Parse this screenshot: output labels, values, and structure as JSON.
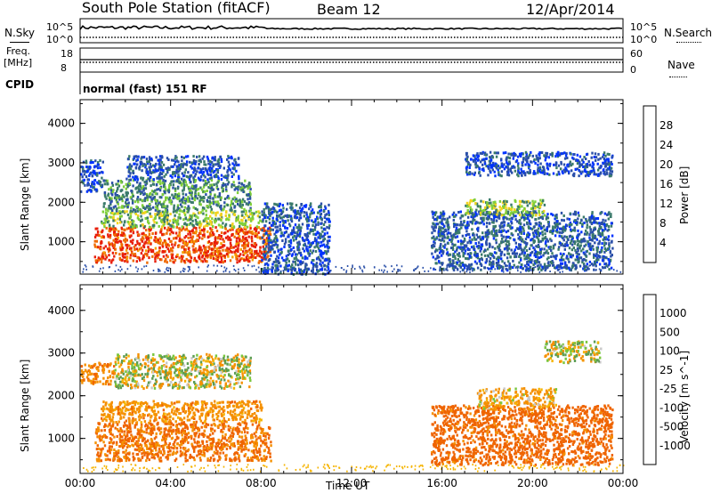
{
  "header": {
    "station": "South Pole Station (fitACF)",
    "beam": "Beam 12",
    "date": "12/Apr/2014"
  },
  "top_panels": {
    "nsky_label": "N.Sky",
    "nsky_ticks": [
      "10^5",
      "10^0"
    ],
    "nsearch_label": "N.Search",
    "nsearch_ticks": [
      "10^5",
      "10^0"
    ],
    "freq_label_1": "Freq.",
    "freq_label_2": "[MHz]",
    "freq_ticks": [
      "18",
      "8"
    ],
    "nave_label": "Nave",
    "nave_ticks": [
      "60",
      "0"
    ],
    "cpid_label": "CPID",
    "cpid_value": "normal (fast) 151 RF"
  },
  "chart_data": [
    {
      "type": "heatmap",
      "title": "",
      "xlabel": "Time UT",
      "ylabel": "Slant Range [km]",
      "x_ticks": [
        "00:00",
        "04:00",
        "08:00",
        "12:00",
        "16:00",
        "20:00",
        "00:00"
      ],
      "xlim_hours": [
        0,
        24
      ],
      "y_ticks": [
        1000,
        2000,
        3000,
        4000
      ],
      "ylim": [
        180,
        4600
      ],
      "quantity": "Power [dB]",
      "colorbar_ticks": [
        "4",
        "8",
        "12",
        "16",
        "20",
        "24",
        "28"
      ],
      "colorbar_range": [
        0,
        30
      ],
      "colors": [
        "#0033ff",
        "#2a4fa8",
        "#3a7a6a",
        "#7fcf3a",
        "#f2d21e",
        "#f5a000",
        "#ef6a00",
        "#e81e0a"
      ],
      "regions": [
        {
          "t": [
            0.6,
            8.4
          ],
          "r": [
            500,
            1400
          ],
          "level": 28
        },
        {
          "t": [
            0.9,
            8.0
          ],
          "r": [
            1400,
            1800
          ],
          "level": 14
        },
        {
          "t": [
            1.0,
            7.5
          ],
          "r": [
            1800,
            2600
          ],
          "level": 10
        },
        {
          "t": [
            0.0,
            1.0
          ],
          "r": [
            2300,
            3100
          ],
          "level": 5
        },
        {
          "t": [
            2.0,
            7.0
          ],
          "r": [
            2600,
            3200
          ],
          "level": 6
        },
        {
          "t": [
            8.0,
            11.0
          ],
          "r": [
            200,
            2000
          ],
          "level": 6
        },
        {
          "t": [
            15.5,
            23.5
          ],
          "r": [
            300,
            1800
          ],
          "level": 7
        },
        {
          "t": [
            17.0,
            20.5
          ],
          "r": [
            1700,
            2100
          ],
          "level": 14
        },
        {
          "t": [
            17.0,
            23.5
          ],
          "r": [
            2700,
            3300
          ],
          "level": 5
        }
      ]
    },
    {
      "type": "heatmap",
      "title": "",
      "xlabel": "Time UT",
      "ylabel": "Slant Range [km]",
      "x_ticks": [
        "00:00",
        "04:00",
        "08:00",
        "12:00",
        "16:00",
        "20:00",
        "00:00"
      ],
      "xlim_hours": [
        0,
        24
      ],
      "y_ticks": [
        1000,
        2000,
        3000,
        4000
      ],
      "ylim": [
        180,
        4600
      ],
      "quantity": "Velocity [m s^-1]",
      "colorbar_ticks": [
        "1000",
        "500",
        "100",
        "25",
        "-25",
        "-100",
        "-500",
        "-1000"
      ],
      "colors": [
        "#2747b0",
        "#3f7a78",
        "#5d9d52",
        "#7ac63e",
        "#c8c8c8",
        "#f5b400",
        "#f59000",
        "#ef6400",
        "#e82a0a"
      ],
      "regions": [
        {
          "t": [
            0.6,
            8.4
          ],
          "r": [
            500,
            1400
          ],
          "level": -600
        },
        {
          "t": [
            0.9,
            8.0
          ],
          "r": [
            1400,
            1900
          ],
          "level": -300
        },
        {
          "t": [
            0.0,
            1.5
          ],
          "r": [
            2300,
            2800
          ],
          "level": -400
        },
        {
          "t": [
            1.5,
            7.5
          ],
          "r": [
            2200,
            3000
          ],
          "level": 0
        },
        {
          "t": [
            15.5,
            23.5
          ],
          "r": [
            400,
            1800
          ],
          "level": -700
        },
        {
          "t": [
            17.5,
            21.0
          ],
          "r": [
            1700,
            2200
          ],
          "level": -200
        },
        {
          "t": [
            20.5,
            23.0
          ],
          "r": [
            2800,
            3300
          ],
          "level": 0
        }
      ]
    }
  ]
}
